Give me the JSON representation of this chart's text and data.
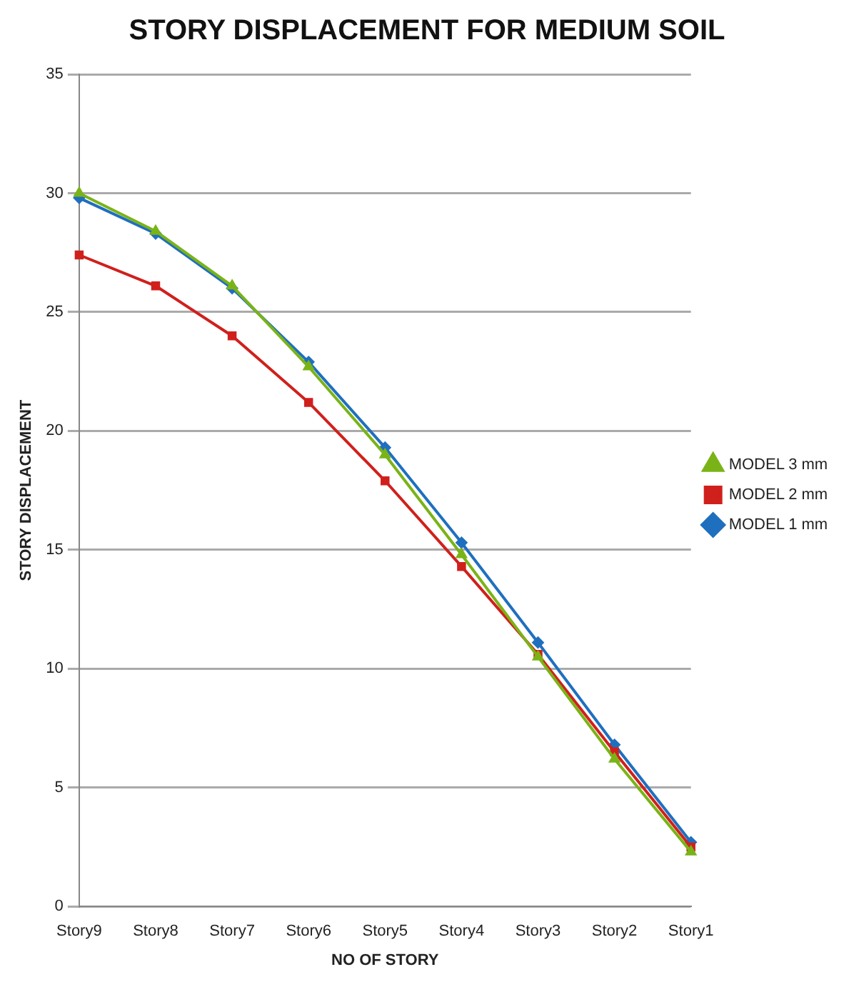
{
  "chart_data": {
    "type": "line",
    "title": "STORY DISPLACEMENT FOR MEDIUM SOIL",
    "xlabel": "NO OF STORY",
    "ylabel": "STORY DISPLACEMENT",
    "categories": [
      "Story9",
      "Story8",
      "Story7",
      "Story6",
      "Story5",
      "Story4",
      "Story3",
      "Story2",
      "Story1"
    ],
    "series": [
      {
        "name": "MODEL 1 mm",
        "color": "#1f6fbf",
        "marker": "diamond",
        "values": [
          29.8,
          28.3,
          26.0,
          22.9,
          19.3,
          15.3,
          11.1,
          6.8,
          2.7
        ]
      },
      {
        "name": "MODEL 2 mm",
        "color": "#d0201c",
        "marker": "square",
        "values": [
          27.4,
          26.1,
          24.0,
          21.2,
          17.9,
          14.3,
          10.6,
          6.5,
          2.5
        ]
      },
      {
        "name": "MODEL 3 mm",
        "color": "#7ab317",
        "marker": "triangle",
        "values": [
          30.0,
          28.4,
          26.1,
          22.7,
          19.0,
          14.8,
          10.5,
          6.2,
          2.3
        ]
      }
    ],
    "ylim": [
      0,
      35
    ],
    "yticks": [
      0,
      5,
      10,
      15,
      20,
      25,
      30,
      35
    ],
    "grid": "y",
    "legend": "right",
    "line_style": "solid"
  }
}
